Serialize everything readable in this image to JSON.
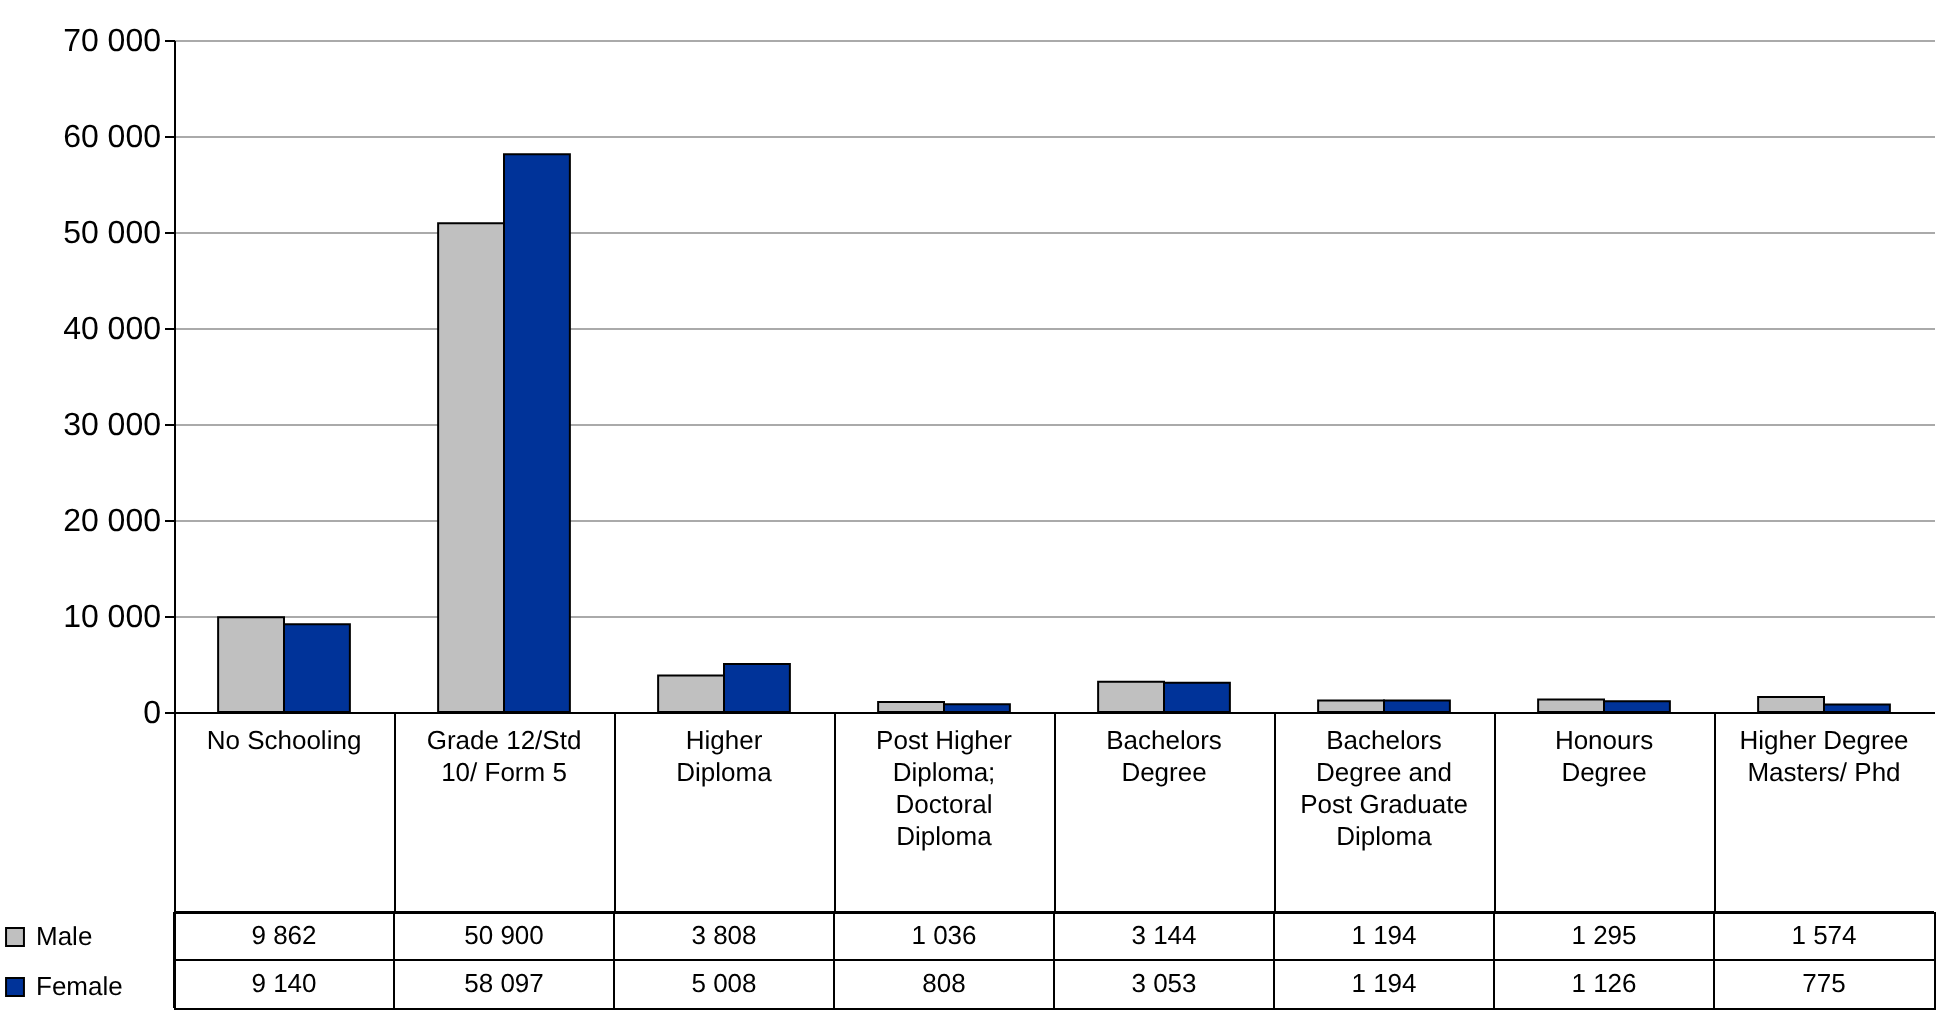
{
  "chart_data": {
    "type": "bar",
    "categories": [
      "No Schooling",
      "Grade 12/Std 10/ Form 5",
      "Higher Diploma",
      "Post Higher Diploma; Doctoral Diploma",
      "Bachelors Degree",
      "Bachelors Degree and Post Graduate Diploma",
      "Honours Degree",
      "Higher Degree Masters/ Phd"
    ],
    "series": [
      {
        "name": "Male",
        "color": "#c0c0c0",
        "values": [
          9862,
          50900,
          3808,
          1036,
          3144,
          1194,
          1295,
          1574
        ],
        "value_labels": [
          "9 862",
          "50 900",
          "3 808",
          "1 036",
          "3 144",
          "1 194",
          "1 295",
          "1 574"
        ]
      },
      {
        "name": "Female",
        "color": "#003399",
        "values": [
          9140,
          58097,
          5008,
          808,
          3053,
          1194,
          1126,
          775
        ],
        "value_labels": [
          "9 140",
          "58 097",
          "5 008",
          "808",
          "3 053",
          "1 194",
          "1 126",
          "775"
        ]
      }
    ],
    "ylim": [
      0,
      70000
    ],
    "yticks": [
      {
        "value": 0,
        "label": "0"
      },
      {
        "value": 10000,
        "label": "10 000"
      },
      {
        "value": 20000,
        "label": "20 000"
      },
      {
        "value": 30000,
        "label": "30 000"
      },
      {
        "value": 40000,
        "label": "40 000"
      },
      {
        "value": 50000,
        "label": "50 000"
      },
      {
        "value": 60000,
        "label": "60 000"
      },
      {
        "value": 70000,
        "label": "70 000"
      }
    ],
    "grid": "y",
    "legend": "bottom left"
  }
}
